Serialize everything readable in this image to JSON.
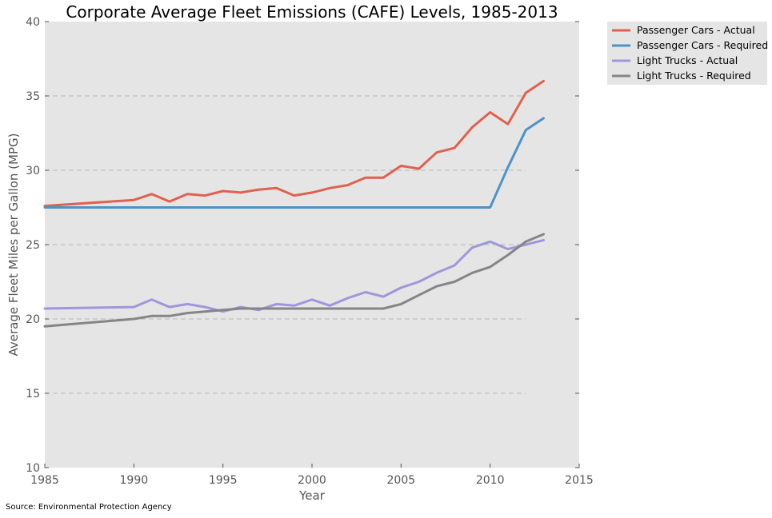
{
  "chart_data": {
    "type": "line",
    "title": "Corporate Average Fleet Emissions (CAFE) Levels, 1985-2013",
    "xlabel": "Year",
    "ylabel": "Average Fleet Miles per Gallon (MPG)",
    "xlim": [
      1985,
      2015
    ],
    "ylim": [
      10,
      40
    ],
    "xticks": [
      1985,
      1990,
      1995,
      2000,
      2005,
      2010,
      2015
    ],
    "yticks": [
      10,
      15,
      20,
      25,
      30,
      35,
      40
    ],
    "grid": "horizontal dashed",
    "legend_position": "outside-top-right",
    "series": [
      {
        "name": "Passenger Cars - Actual",
        "color": "#e1614e",
        "x": [
          1985,
          1990,
          1991,
          1992,
          1993,
          1994,
          1995,
          1996,
          1997,
          1998,
          1999,
          2000,
          2001,
          2002,
          2003,
          2004,
          2005,
          2006,
          2007,
          2008,
          2009,
          2010,
          2011,
          2012,
          2013
        ],
        "y": [
          27.6,
          28.0,
          28.4,
          27.9,
          28.4,
          28.3,
          28.6,
          28.5,
          28.7,
          28.8,
          28.3,
          28.5,
          28.8,
          29.0,
          29.5,
          29.5,
          30.3,
          30.1,
          31.2,
          31.5,
          32.9,
          33.9,
          33.1,
          35.2,
          36.0
        ]
      },
      {
        "name": "Passenger Cars - Required",
        "color": "#4c94c5",
        "x": [
          1985,
          1990,
          1995,
          2000,
          2005,
          2010,
          2011,
          2012,
          2013
        ],
        "y": [
          27.5,
          27.5,
          27.5,
          27.5,
          27.5,
          27.5,
          30.2,
          32.7,
          33.5
        ]
      },
      {
        "name": "Light Trucks - Actual",
        "color": "#9f96db",
        "x": [
          1985,
          1990,
          1991,
          1992,
          1993,
          1994,
          1995,
          1996,
          1997,
          1998,
          1999,
          2000,
          2001,
          2002,
          2003,
          2004,
          2005,
          2006,
          2007,
          2008,
          2009,
          2010,
          2011,
          2012,
          2013
        ],
        "y": [
          20.7,
          20.8,
          21.3,
          20.8,
          21.0,
          20.8,
          20.5,
          20.8,
          20.6,
          21.0,
          20.9,
          21.3,
          20.9,
          21.4,
          21.8,
          21.5,
          22.1,
          22.5,
          23.1,
          23.6,
          24.8,
          25.2,
          24.7,
          25.0,
          25.3
        ]
      },
      {
        "name": "Light Trucks - Required",
        "color": "#858585",
        "x": [
          1985,
          1990,
          1991,
          1992,
          1993,
          1994,
          1995,
          1996,
          1997,
          1998,
          1999,
          2000,
          2001,
          2002,
          2003,
          2004,
          2005,
          2006,
          2007,
          2008,
          2009,
          2010,
          2011,
          2012,
          2013
        ],
        "y": [
          19.5,
          20.0,
          20.2,
          20.2,
          20.4,
          20.5,
          20.6,
          20.7,
          20.7,
          20.7,
          20.7,
          20.7,
          20.7,
          20.7,
          20.7,
          20.7,
          21.0,
          21.6,
          22.2,
          22.5,
          23.1,
          23.5,
          24.3,
          25.2,
          25.7
        ]
      }
    ]
  },
  "source_text": "Source: Environmental Protection Agency"
}
